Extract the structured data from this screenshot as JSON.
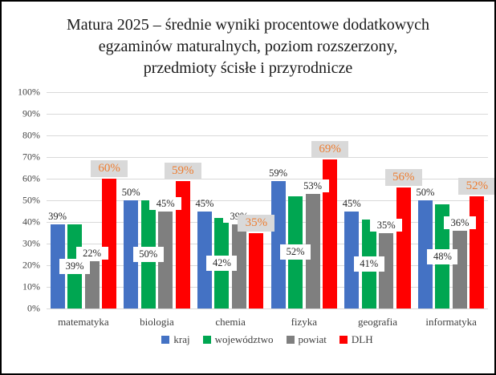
{
  "title_lines": [
    "Matura 2025 – średnie wyniki procentowe dodatkowych",
    "egzaminów maturalnych, poziom rozszerzony,",
    "przedmioty ścisłe i przyrodnicze"
  ],
  "chart_data": {
    "type": "bar",
    "title": "Matura 2025 – średnie wyniki procentowe dodatkowych egzaminów maturalnych, poziom rozszerzony, przedmioty ścisłe i przyrodnicze",
    "categories": [
      "matematyka",
      "biologia",
      "chemia",
      "fizyka",
      "geografia",
      "informatyka"
    ],
    "series": [
      {
        "name": "kraj",
        "color": "#4472C4",
        "values": [
          39,
          50,
          45,
          59,
          45,
          50
        ],
        "label_placement": "outside-end",
        "label_color": "#262626",
        "label_bg": "transparent"
      },
      {
        "name": "województwo",
        "color": "#00A651",
        "values": [
          39,
          50,
          42,
          52,
          41,
          48
        ],
        "label_placement": "inside-center",
        "label_color": "#262626",
        "label_bg": "#ffffff"
      },
      {
        "name": "powiat",
        "color": "#7F7F7F",
        "values": [
          22,
          45,
          39,
          53,
          35,
          36
        ],
        "label_placement": "outside-end",
        "label_color": "#262626",
        "label_bg": "#ffffff"
      },
      {
        "name": "DLH",
        "color": "#FF0000",
        "values": [
          60,
          59,
          35,
          69,
          56,
          52
        ],
        "label_placement": "outside-end",
        "label_color": "#ED7D31",
        "label_bg": "#D9D9D9"
      }
    ],
    "value_suffix": "%",
    "ylim": [
      0,
      100
    ],
    "y_ticks": [
      "0%",
      "10%",
      "20%",
      "30%",
      "40%",
      "50%",
      "60%",
      "70%",
      "80%",
      "90%",
      "100%"
    ],
    "grid": true,
    "gridline_color": "#D9D9D9",
    "legend_position": "bottom"
  }
}
